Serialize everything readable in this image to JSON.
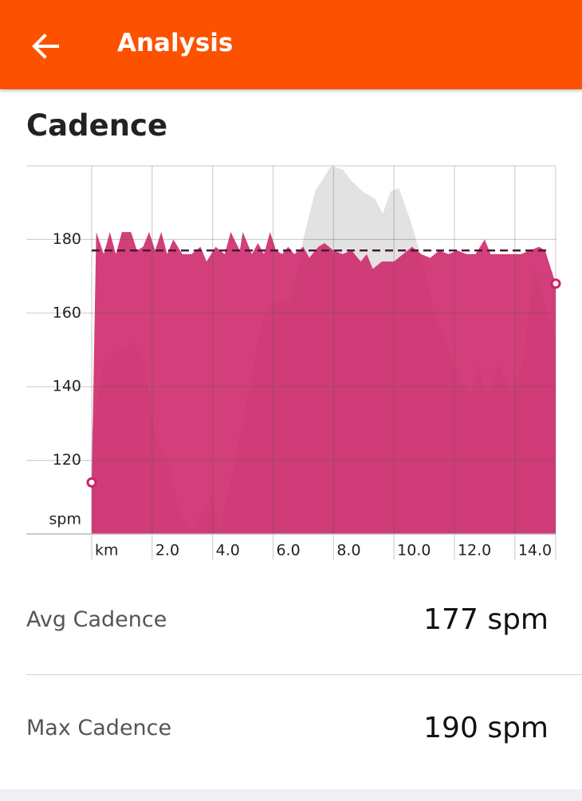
{
  "header": {
    "title": "Analysis"
  },
  "section_title": "Cadence",
  "chart_data": {
    "type": "area",
    "y_unit": "spm",
    "color": "#cc2468",
    "x": [
      0,
      0.15,
      0.4,
      0.6,
      0.8,
      1.0,
      1.3,
      1.5,
      1.7,
      1.9,
      2.1,
      2.3,
      2.5,
      2.7,
      3.0,
      3.3,
      3.6,
      3.8,
      4.1,
      4.4,
      4.6,
      4.9,
      5.0,
      5.3,
      5.5,
      5.7,
      5.9,
      6.1,
      6.3,
      6.5,
      6.7,
      7.0,
      7.2,
      7.5,
      7.7,
      8.0,
      8.3,
      8.6,
      8.9,
      9.1,
      9.3,
      9.6,
      10.0,
      10.3,
      10.6,
      10.9,
      11.2,
      11.5,
      11.8,
      12.1,
      12.4,
      12.7,
      13.0,
      13.2,
      13.5,
      13.9,
      14.2,
      14.5,
      14.8,
      15.0,
      15.35
    ],
    "values": [
      114,
      182,
      176,
      182,
      176,
      182,
      182,
      177,
      178,
      182,
      177,
      182,
      176,
      180,
      176,
      176,
      178,
      174,
      178,
      176,
      182,
      177,
      182,
      176,
      179,
      176,
      182,
      177,
      176,
      178,
      176,
      178,
      175,
      178,
      179,
      177,
      176,
      177,
      174,
      176,
      172,
      174,
      174,
      176,
      178,
      176,
      175,
      177,
      176,
      177,
      176,
      176,
      180,
      176,
      176,
      176,
      176,
      177,
      178,
      177,
      168
    ],
    "elevation": {
      "color": "#e2e2e2",
      "x": [
        0,
        0.4,
        0.92,
        1.32,
        1.72,
        2.11,
        2.51,
        2.9,
        3.3,
        3.69,
        3.96,
        4.22,
        4.62,
        5.15,
        5.67,
        6.07,
        6.6,
        7.0,
        7.39,
        7.92,
        8.31,
        8.58,
        8.97,
        9.37,
        9.63,
        9.89,
        10.16,
        10.55,
        10.95,
        11.35,
        11.74,
        12.14,
        12.53,
        12.8,
        13.06,
        13.46,
        13.85,
        14.25,
        14.64,
        15.04,
        15.35
      ],
      "values": [
        128,
        146,
        150,
        152,
        148,
        126,
        120,
        106,
        101,
        106,
        110,
        101,
        115,
        137,
        159,
        163,
        163,
        180,
        193,
        200,
        199,
        196,
        193,
        191,
        187,
        193,
        194,
        185,
        174,
        159,
        152,
        143,
        137,
        146,
        137,
        146,
        139,
        146,
        172,
        161,
        154
      ]
    },
    "average": 177,
    "xlim": [
      0,
      15.35
    ],
    "ylim": [
      100,
      200
    ],
    "xticks": [
      {
        "value": 0,
        "label": "km"
      },
      {
        "value": 2,
        "label": "2.0"
      },
      {
        "value": 4,
        "label": "4.0"
      },
      {
        "value": 6,
        "label": "6.0"
      },
      {
        "value": 8,
        "label": "8.0"
      },
      {
        "value": 10,
        "label": "10.0"
      },
      {
        "value": 12,
        "label": "12.0"
      },
      {
        "value": 14,
        "label": "14.0"
      }
    ],
    "yticks": [
      120,
      140,
      160,
      180
    ],
    "grid": true
  },
  "stats": [
    {
      "label": "Avg Cadence",
      "value": "177 spm"
    },
    {
      "label": "Max Cadence",
      "value": "190 spm"
    }
  ]
}
